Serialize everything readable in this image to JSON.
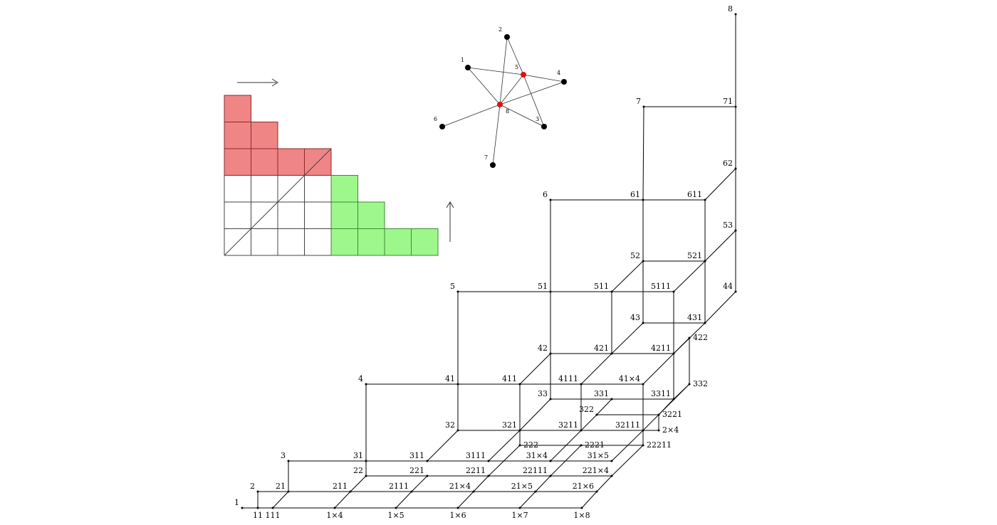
{
  "lattice": {
    "nodes": [
      "1",
      "2",
      "3",
      "4",
      "5",
      "6",
      "7",
      "8",
      "11",
      "111",
      "1×4",
      "1×5",
      "1×6",
      "1×7",
      "1×8",
      "21",
      "211",
      "2111",
      "21×4",
      "21×5",
      "21×6",
      "22",
      "221",
      "2211",
      "22111",
      "221×4",
      "31",
      "311",
      "3111",
      "31×4",
      "31×5",
      "222",
      "2221",
      "22211",
      "32",
      "321",
      "3211",
      "32111",
      "2×4",
      "322",
      "3221",
      "33",
      "331",
      "3311",
      "332",
      "41",
      "411",
      "4111",
      "41×4",
      "42",
      "421",
      "4211",
      "422",
      "43",
      "431",
      "51",
      "511",
      "5111",
      "44",
      "52",
      "521",
      "53",
      "61",
      "611",
      "62",
      "71"
    ]
  },
  "graph": {
    "nodes": [
      "1",
      "2",
      "3",
      "4",
      "5",
      "6",
      "7",
      "8"
    ]
  }
}
